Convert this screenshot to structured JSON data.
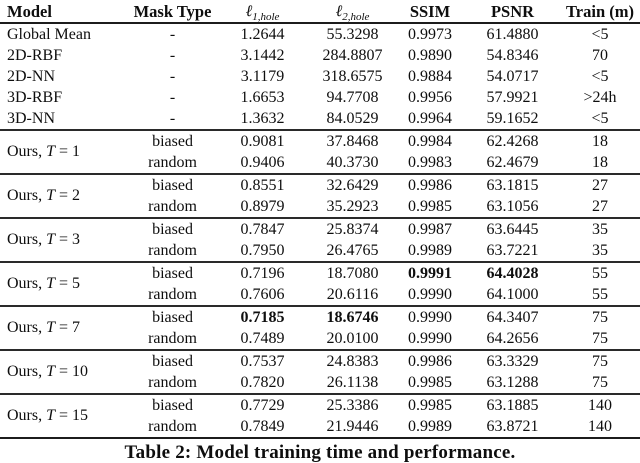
{
  "caption": "Table 2: Model training time and performance.",
  "table": {
    "columns": [
      {
        "key": "model",
        "label": "Model",
        "math": false
      },
      {
        "key": "mask",
        "label": "Mask Type",
        "math": false
      },
      {
        "key": "l1",
        "label": "ℓ",
        "sub": "1,hole",
        "math": true
      },
      {
        "key": "l2",
        "label": "ℓ",
        "sub": "2,hole",
        "math": true
      },
      {
        "key": "ssim",
        "label": "SSIM",
        "math": false
      },
      {
        "key": "psnr",
        "label": "PSNR",
        "math": false
      },
      {
        "key": "train",
        "label": "Train (m)",
        "math": false
      }
    ],
    "groups": [
      {
        "rows": [
          {
            "model": "Global Mean",
            "mask": "-",
            "values": [
              "1.2644",
              "55.3298",
              "0.9973",
              "61.4880",
              "<5"
            ]
          },
          {
            "model": "2D-RBF",
            "mask": "-",
            "values": [
              "3.1442",
              "284.8807",
              "0.9890",
              "54.8346",
              "70"
            ]
          },
          {
            "model": "2D-NN",
            "mask": "-",
            "values": [
              "3.1179",
              "318.6575",
              "0.9884",
              "54.0717",
              "<5"
            ]
          },
          {
            "model": "3D-RBF",
            "mask": "-",
            "values": [
              "1.6653",
              "94.7708",
              "0.9956",
              "57.9921",
              ">24h"
            ]
          },
          {
            "model": "3D-NN",
            "mask": "-",
            "values": [
              "1.3632",
              "84.0529",
              "0.9964",
              "59.1652",
              "<5"
            ]
          }
        ]
      },
      {
        "model": "Ours, T = 1",
        "rows": [
          {
            "mask": "biased",
            "values": [
              "0.9081",
              "37.8468",
              "0.9984",
              "62.4268",
              "18"
            ]
          },
          {
            "mask": "random",
            "values": [
              "0.9406",
              "40.3730",
              "0.9983",
              "62.4679",
              "18"
            ]
          }
        ]
      },
      {
        "model": "Ours, T = 2",
        "rows": [
          {
            "mask": "biased",
            "values": [
              "0.8551",
              "32.6429",
              "0.9986",
              "63.1815",
              "27"
            ]
          },
          {
            "mask": "random",
            "values": [
              "0.8979",
              "35.2923",
              "0.9985",
              "63.1056",
              "27"
            ]
          }
        ]
      },
      {
        "model": "Ours, T = 3",
        "rows": [
          {
            "mask": "biased",
            "values": [
              "0.7847",
              "25.8374",
              "0.9987",
              "63.6445",
              "35"
            ]
          },
          {
            "mask": "random",
            "values": [
              "0.7950",
              "26.4765",
              "0.9989",
              "63.7221",
              "35"
            ]
          }
        ]
      },
      {
        "model": "Ours, T = 5",
        "rows": [
          {
            "mask": "biased",
            "values": [
              "0.7196",
              "18.7080",
              "0.9991",
              "64.4028",
              "55"
            ],
            "bold": [
              2,
              3
            ]
          },
          {
            "mask": "random",
            "values": [
              "0.7606",
              "20.6116",
              "0.9990",
              "64.1000",
              "55"
            ]
          }
        ]
      },
      {
        "model": "Ours, T = 7",
        "rows": [
          {
            "mask": "biased",
            "values": [
              "0.7185",
              "18.6746",
              "0.9990",
              "64.3407",
              "75"
            ],
            "bold": [
              0,
              1
            ]
          },
          {
            "mask": "random",
            "values": [
              "0.7489",
              "20.0100",
              "0.9990",
              "64.2656",
              "75"
            ]
          }
        ]
      },
      {
        "model": "Ours, T = 10",
        "rows": [
          {
            "mask": "biased",
            "values": [
              "0.7537",
              "24.8383",
              "0.9986",
              "63.3329",
              "75"
            ]
          },
          {
            "mask": "random",
            "values": [
              "0.7820",
              "26.1138",
              "0.9985",
              "63.1288",
              "75"
            ]
          }
        ]
      },
      {
        "model": "Ours, T = 15",
        "rows": [
          {
            "mask": "biased",
            "values": [
              "0.7729",
              "25.3386",
              "0.9985",
              "63.1885",
              "140"
            ]
          },
          {
            "mask": "random",
            "values": [
              "0.7849",
              "21.9446",
              "0.9989",
              "63.8721",
              "140"
            ]
          }
        ]
      }
    ]
  }
}
